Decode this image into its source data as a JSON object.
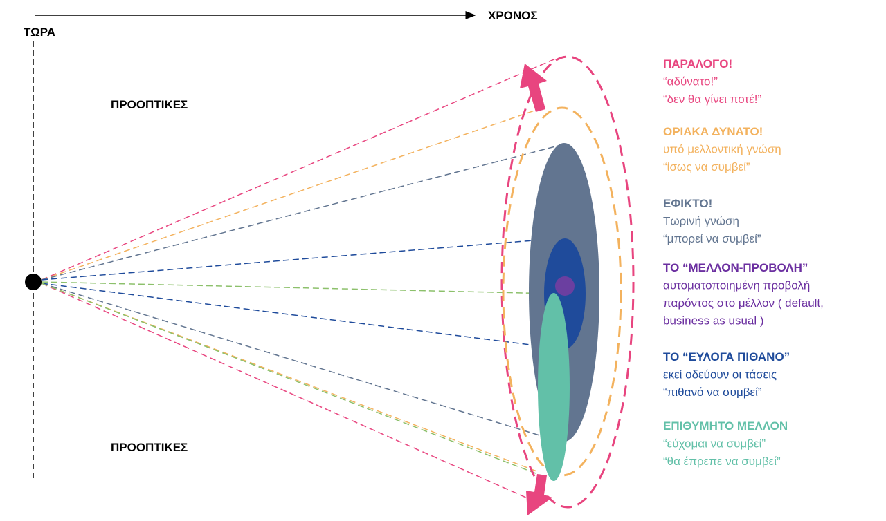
{
  "axis": {
    "label": "ΧΡΟΝΟΣ"
  },
  "now_label": "ΤΩΡΑ",
  "perspectives": [
    "ΠΡΟΟΠΤΙΚΕΣ",
    "ΠΡΟΟΠΤΙΚΕΣ"
  ],
  "legend": [
    {
      "title": "ΠΑΡΑΛΟΓΟ!",
      "lines": [
        "“αδύνατο!”",
        "“δεν θα γίνει ποτέ!”"
      ]
    },
    {
      "title": "ΟΡΙΑΚΑ ΔΥΝΑΤΟ!",
      "lines": [
        "υπό μελλοντική γνώση",
        "“ίσως να συμβεί”"
      ]
    },
    {
      "title": "ΕΦΙΚΤΟ!",
      "lines": [
        "Τωρινή γνώση",
        "“μπορεί να συμβεί”"
      ]
    },
    {
      "title": "ΤΟ “ΜΕΛΛΟΝ-ΠΡΟΒΟΛΗ”",
      "lines": [
        "αυτοματοποιημένη προβολή",
        "παρόντος στο μέλλον ( default,",
        "business as usual )"
      ]
    },
    {
      "title": "ΤΟ “ΕΥΛΟΓΑ ΠΙΘΑΝΟ”",
      "lines": [
        "εκεί οδεύουν οι τάσεις",
        "“πιθανό να συμβεί”"
      ]
    },
    {
      "title": "ΕΠΙΘΥΜΗΤΟ ΜΕΛΛΟΝ",
      "lines": [
        "“εύχομαι να συμβεί”",
        "“θα έπρεπε να συμβεί”"
      ]
    }
  ]
}
